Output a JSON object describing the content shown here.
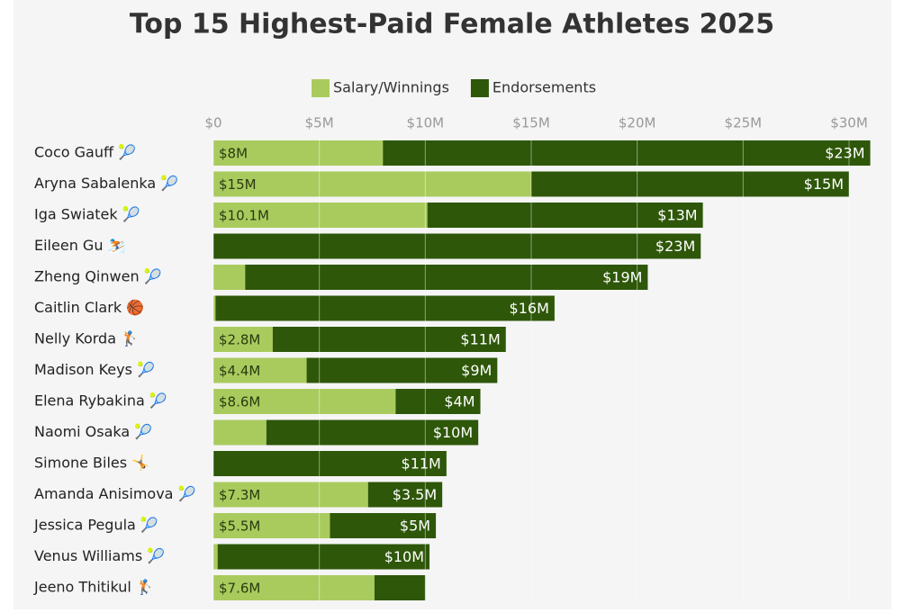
{
  "chart_data": {
    "type": "stacked-bar-horizontal",
    "title": "Top 15 Highest-Paid Female Athletes 2025",
    "categories": [
      "Coco Gauff 🎾",
      "Aryna Sabalenka 🎾",
      "Iga Swiatek 🎾",
      "Eileen Gu ⛷️",
      "Zheng Qinwen 🎾",
      "Caitlin Clark 🏀",
      "Nelly Korda 🏌️",
      "Madison Keys 🎾",
      "Elena Rybakina 🎾",
      "Naomi Osaka 🎾",
      "Simone Biles 🤸",
      "Amanda Anisimova 🎾",
      "Jessica Pegula 🎾",
      "Venus Williams 🎾",
      "Jeeno Thitikul 🏌️"
    ],
    "series": [
      {
        "name": "Salary/Winnings",
        "color": "#a9cb5e",
        "values": [
          8,
          15,
          10.1,
          0,
          1.5,
          0.1,
          2.8,
          4.4,
          8.6,
          2.5,
          0,
          7.3,
          5.5,
          0.2,
          7.6
        ],
        "value_labels": [
          "$8M",
          "$15M",
          "$10.1M",
          null,
          null,
          null,
          "$2.8M",
          "$4.4M",
          "$8.6M",
          null,
          null,
          "$7.3M",
          "$5.5M",
          null,
          "$7.6M"
        ]
      },
      {
        "name": "Endorsements",
        "color": "#2e5709",
        "values": [
          23,
          15,
          13,
          23,
          19,
          16,
          11,
          9,
          4,
          10,
          11,
          3.5,
          5,
          10,
          2.4
        ],
        "value_labels": [
          "$23M",
          "$15M",
          "$13M",
          "$23M",
          "$19M",
          "$16M",
          "$11M",
          "$9M",
          "$4M",
          "$10M",
          "$11M",
          "$3.5M",
          "$5M",
          "$10M",
          null
        ]
      }
    ],
    "xlim": [
      0,
      31
    ],
    "xticks": [
      {
        "value": 0,
        "label": "$0"
      },
      {
        "value": 5,
        "label": "$5M"
      },
      {
        "value": 10,
        "label": "$10M"
      },
      {
        "value": 15,
        "label": "$15M"
      },
      {
        "value": 20,
        "label": "$20M"
      },
      {
        "value": 25,
        "label": "$25M"
      },
      {
        "value": 30,
        "label": "$30M"
      }
    ],
    "grid": true,
    "legend": "top"
  }
}
